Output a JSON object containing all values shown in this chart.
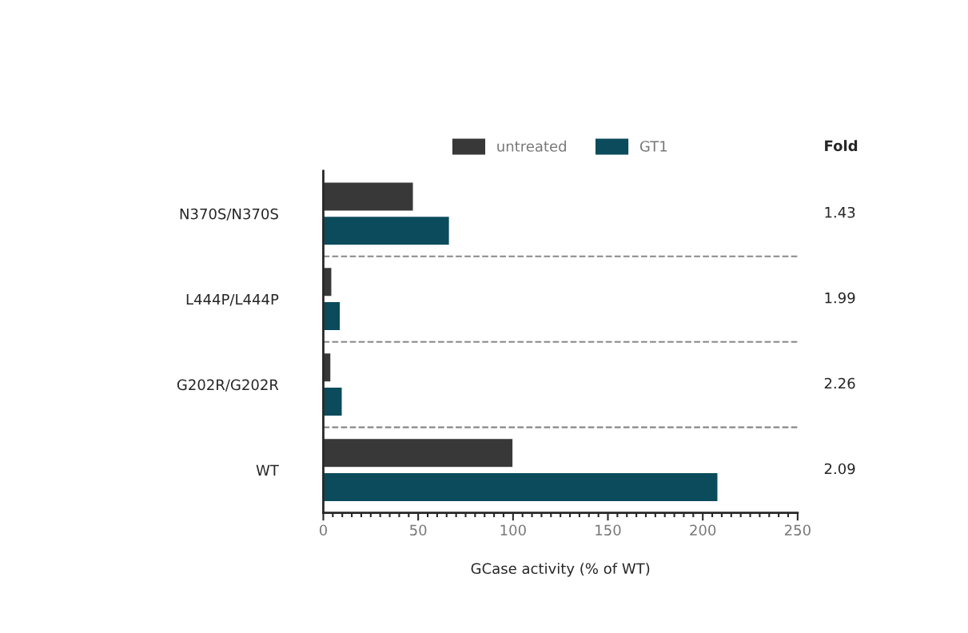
{
  "chart_data": {
    "type": "bar",
    "orientation": "horizontal",
    "categories": [
      "N370S/N370S",
      "L444P/L444P",
      "G202R/G202R",
      "WT"
    ],
    "series": [
      {
        "name": "untreated",
        "color": "#383838",
        "values": [
          47.5,
          4.5,
          4,
          100
        ]
      },
      {
        "name": "GT1",
        "color": "#0b4b5c",
        "values": [
          66.5,
          9,
          10,
          208
        ]
      }
    ],
    "xlabel": "GCase activity (% of WT)",
    "xlim": [
      0,
      250
    ],
    "xticks": [
      0,
      50,
      100,
      150,
      200,
      250
    ],
    "annotations": [
      "Fold",
      "1.43",
      "1.99",
      "2.26",
      "2.09"
    ],
    "legend": "top",
    "grid": false
  }
}
